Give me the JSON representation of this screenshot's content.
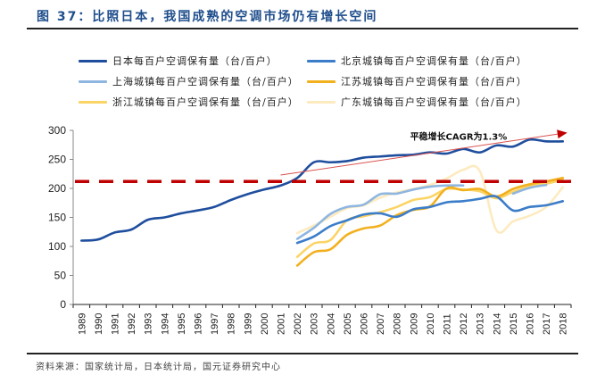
{
  "figure": {
    "title": "图 37：比照日本，我国成熟的空调市场仍有增长空间",
    "source": "资料来源：国家统计局，日本统计局，国元证券研究中心"
  },
  "chart_data": {
    "type": "line",
    "title": "图 37：比照日本，我国成熟的空调市场仍有增长空间",
    "xlabel": "",
    "ylabel": "",
    "ylim": [
      0,
      300
    ],
    "yticks": [
      0,
      50,
      100,
      150,
      200,
      250,
      300
    ],
    "grid": false,
    "legend_position": "top",
    "x": [
      "1989",
      "1990",
      "1991",
      "1992",
      "1993",
      "1994",
      "1995",
      "1996",
      "1997",
      "1998",
      "1999",
      "2000",
      "2001",
      "2002",
      "2003",
      "2004",
      "2005",
      "2006",
      "2007",
      "2008",
      "2009",
      "2010",
      "2011",
      "2012",
      "2013",
      "2014",
      "2015",
      "2016",
      "2017",
      "2018"
    ],
    "series": [
      {
        "name": "日本每百户空调保有量（台/百户）",
        "color": "#1f4e9e",
        "values": [
          110,
          112,
          124,
          129,
          146,
          150,
          157,
          162,
          168,
          180,
          190,
          198,
          205,
          218,
          245,
          245,
          247,
          253,
          255,
          257,
          258,
          262,
          260,
          268,
          262,
          274,
          272,
          284,
          281,
          281
        ]
      },
      {
        "name": "北京城镇每百户空调保有量（台/百户）",
        "color": "#3b7dc9",
        "values": [
          null,
          null,
          null,
          null,
          null,
          null,
          null,
          null,
          null,
          null,
          null,
          null,
          null,
          106,
          117,
          135,
          145,
          155,
          157,
          151,
          164,
          168,
          176,
          178,
          182,
          186,
          162,
          168,
          171,
          178
        ]
      },
      {
        "name": "上海城镇每百户空调保有量（台/百户）",
        "color": "#8fb6e0",
        "values": [
          null,
          null,
          null,
          null,
          null,
          null,
          null,
          null,
          null,
          null,
          null,
          null,
          null,
          113,
          132,
          156,
          168,
          172,
          190,
          191,
          198,
          203,
          205,
          205,
          null,
          null,
          191,
          201,
          206,
          null
        ]
      },
      {
        "name": "江苏城镇每百户空调保有量（台/百户）",
        "color": "#f2b01e",
        "values": [
          null,
          null,
          null,
          null,
          null,
          null,
          null,
          null,
          null,
          null,
          null,
          null,
          null,
          67,
          90,
          95,
          120,
          131,
          136,
          154,
          163,
          169,
          200,
          197,
          199,
          186,
          199,
          207,
          212,
          218
        ]
      },
      {
        "name": "浙江城镇每百户空调保有量（台/百户）",
        "color": "#fbd466",
        "values": [
          null,
          null,
          null,
          null,
          null,
          null,
          null,
          null,
          null,
          null,
          null,
          null,
          null,
          82,
          105,
          111,
          145,
          152,
          159,
          168,
          180,
          185,
          199,
          198,
          195,
          183,
          194,
          203,
          208,
          215
        ]
      },
      {
        "name": "广东城镇每百户空调保有量（台/百户）",
        "color": "#fdebc0",
        "values": [
          null,
          null,
          null,
          null,
          null,
          null,
          null,
          null,
          null,
          null,
          null,
          null,
          null,
          123,
          136,
          151,
          166,
          171,
          184,
          193,
          199,
          206,
          217,
          232,
          230,
          128,
          143,
          153,
          168,
          202
        ]
      }
    ],
    "reference_line": {
      "value": 212,
      "color": "#c00000",
      "style": "dashed"
    },
    "trend_arrow": {
      "from_year": "2001",
      "from_value": 223,
      "to_year": "2018",
      "to_value": 296,
      "color": "#d9534f"
    },
    "annotations": [
      {
        "text": "平稳增长CAGR为1.3%",
        "year": "2014",
        "value": 290
      }
    ]
  }
}
